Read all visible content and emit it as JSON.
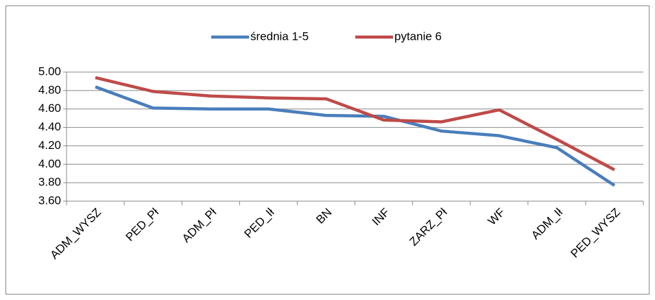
{
  "chart_data": {
    "type": "line",
    "categories": [
      "ADM_WYSZ",
      "PED_Pł",
      "ADM_Pł",
      "PED_Ił",
      "BN",
      "INF",
      "ZARZ_Pł",
      "WF",
      "ADM_Ił",
      "PED_WYSZ"
    ],
    "series": [
      {
        "name": "średnia 1-5",
        "color": "#4a7ebb",
        "values": [
          4.84,
          4.61,
          4.6,
          4.6,
          4.53,
          4.52,
          4.36,
          4.31,
          4.18,
          3.77
        ]
      },
      {
        "name": "pytanie 6",
        "color": "#be4b48",
        "values": [
          4.94,
          4.79,
          4.74,
          4.72,
          4.71,
          4.48,
          4.46,
          4.59,
          4.27,
          3.94
        ]
      }
    ],
    "ylim": [
      3.6,
      5.0
    ],
    "yticks": [
      {
        "value": 3.6,
        "label": "3.60"
      },
      {
        "value": 3.8,
        "label": "3.80"
      },
      {
        "value": 4.0,
        "label": "4.00"
      },
      {
        "value": 4.2,
        "label": "4.20"
      },
      {
        "value": 4.4,
        "label": "4.40"
      },
      {
        "value": 4.6,
        "label": "4.60"
      },
      {
        "value": 4.8,
        "label": "4.80"
      },
      {
        "value": 5.0,
        "label": "5.00"
      }
    ],
    "grid": true,
    "legend": "top"
  }
}
